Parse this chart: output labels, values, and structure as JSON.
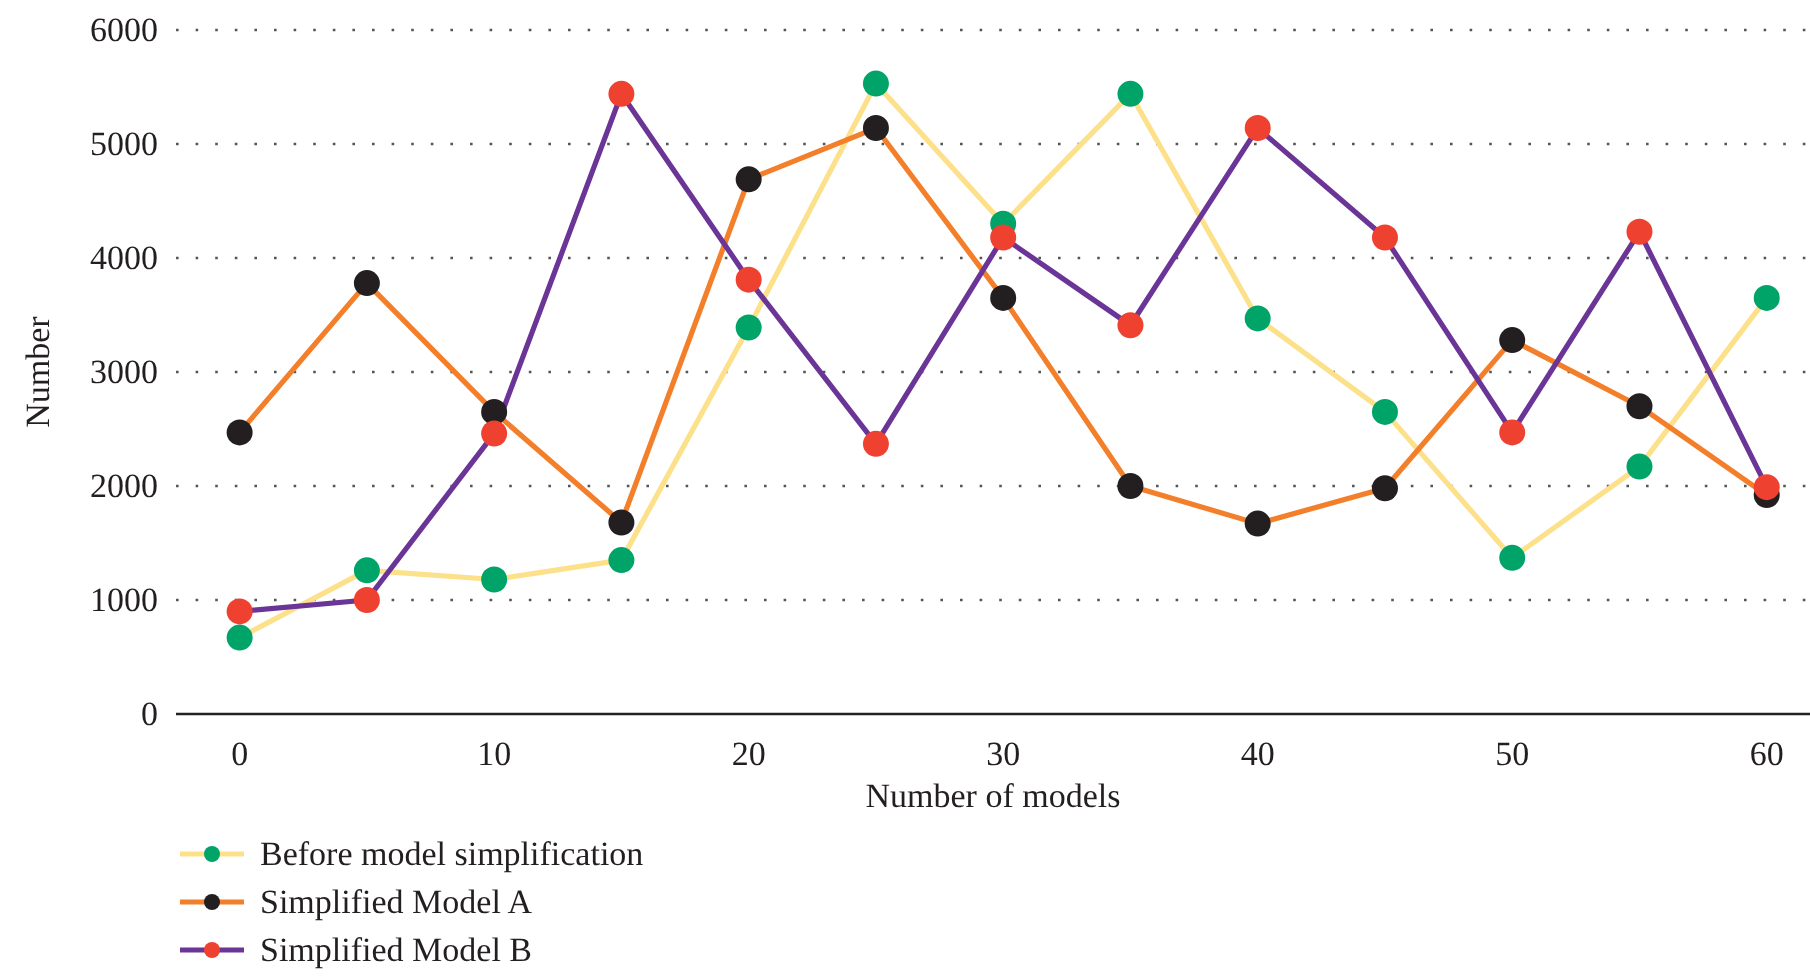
{
  "chart_data": {
    "type": "line",
    "xlabel": "Number of models",
    "ylabel": "Number",
    "xlim": [
      -2.5,
      61.7
    ],
    "xticks": [
      0,
      10,
      20,
      30,
      40,
      50,
      60
    ],
    "ylim": [
      0,
      6000
    ],
    "yticks": [
      0,
      1000,
      2000,
      3000,
      4000,
      5000,
      6000
    ],
    "grid": "y",
    "legend": "bottom left",
    "marker": "circle",
    "line_style": "solid",
    "x": [
      0,
      5,
      10,
      15,
      20,
      25,
      30,
      35,
      40,
      45,
      50,
      55,
      60
    ],
    "series": [
      {
        "name": "Before model simplification",
        "color": "#fde08a",
        "colors": [
          "#00a469",
          "#00a469",
          "#00a469",
          "#00a469",
          "#00a469",
          "#00a469",
          "#00a469",
          "#00a469",
          "#00a469",
          "#00a469",
          "#00a469",
          "#00a469",
          "#00a469"
        ],
        "values": [
          670,
          1260,
          1180,
          1350,
          3390,
          5530,
          4300,
          5440,
          3470,
          2650,
          1370,
          2170,
          3650
        ]
      },
      {
        "name": "Simplified Model A",
        "color": "#f47f2a",
        "colors": [
          "#231f20",
          "#231f20",
          "#231f20",
          "#231f20",
          "#231f20",
          "#231f20",
          "#231f20",
          "#231f20",
          "#231f20",
          "#231f20",
          "#231f20",
          "#231f20",
          "#231f20"
        ],
        "values": [
          2470,
          3780,
          2650,
          1680,
          4690,
          5140,
          3650,
          2000,
          1670,
          1980,
          3280,
          2700,
          1920
        ]
      },
      {
        "name": "Simplified Model B",
        "color": "#6a3596",
        "colors": [
          "#ef4130",
          "#ef4130",
          "#ef4130",
          "#ef4130",
          "#ef4130",
          "#ef4130",
          "#ef4130",
          "#ef4130",
          "#ef4130",
          "#ef4130",
          "#ef4130",
          "#ef4130",
          "#ef4130"
        ],
        "values": [
          900,
          1000,
          2460,
          5440,
          3810,
          2370,
          4180,
          3410,
          5140,
          4180,
          2470,
          4230,
          1990
        ]
      }
    ]
  }
}
